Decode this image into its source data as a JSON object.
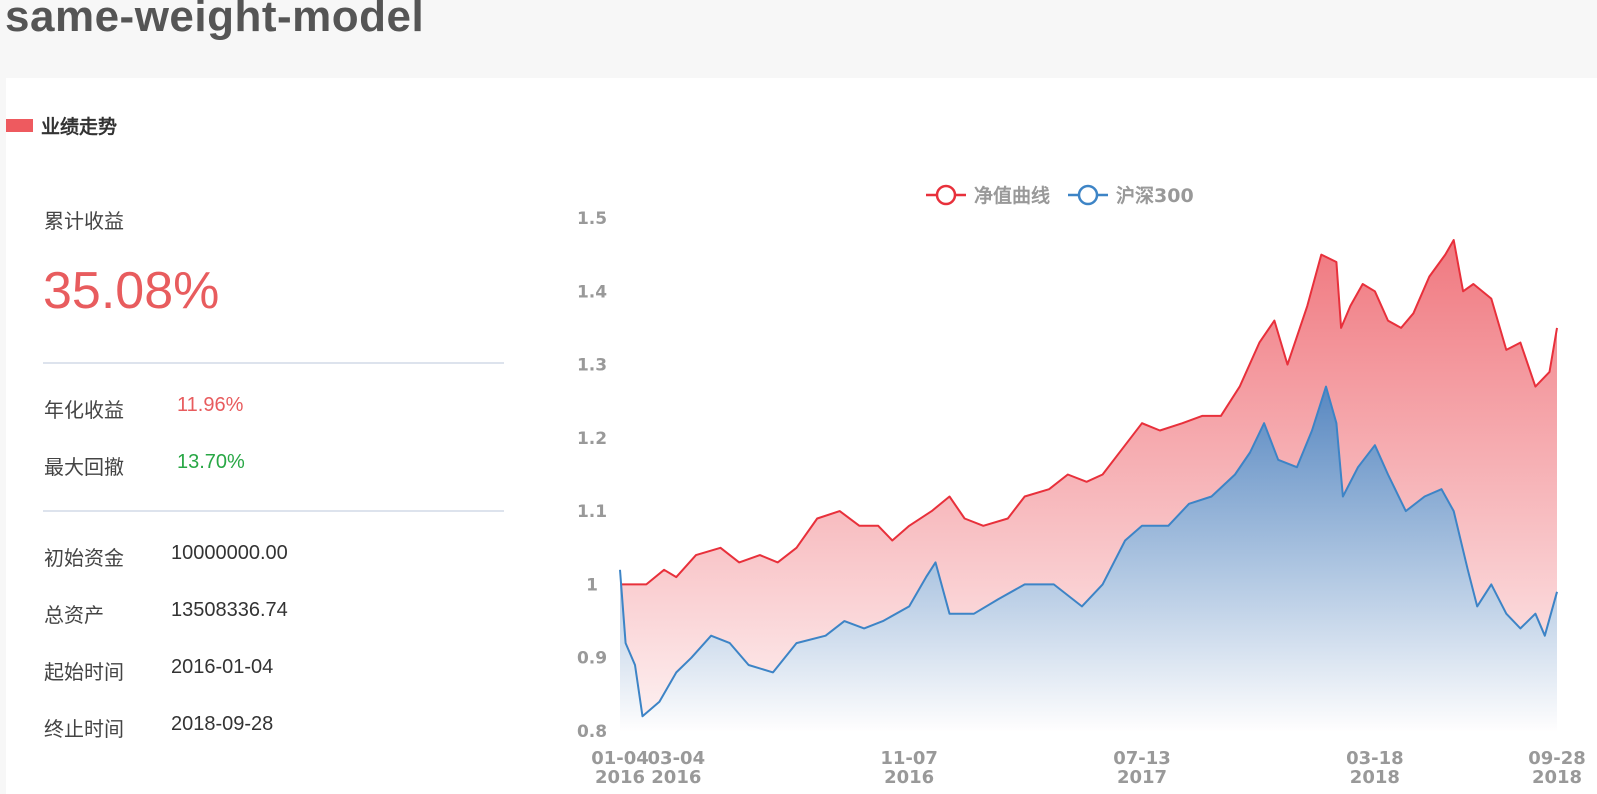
{
  "page_title": "same-weight-model",
  "section_title": "业绩走势",
  "summary": {
    "cumulative_label": "累计收益",
    "cumulative_value": "35.08%",
    "annual_label": "年化收益",
    "annual_value": "11.96%",
    "drawdown_label": "最大回撤",
    "drawdown_value": "13.70%",
    "initial_label": "初始资金",
    "initial_value": "10000000.00",
    "total_label": "总资产",
    "total_value": "13508336.74",
    "start_label": "起始时间",
    "start_value": "2016-01-04",
    "end_label": "终止时间",
    "end_value": "2018-09-28"
  },
  "colors": {
    "accent": "#ee5a5f",
    "positive": "#e85c5e",
    "negative": "#28a745",
    "net_value_line": "#e8303b",
    "benchmark_line": "#3d84c6"
  },
  "chart_data": {
    "type": "area",
    "title": "",
    "xlabel": "",
    "ylabel": "",
    "ylim": [
      0.8,
      1.5
    ],
    "yticks": [
      1.5,
      1.4,
      1.3,
      1.2,
      1.1,
      1,
      0.9,
      0.8
    ],
    "ytick_labels": [
      "1.5",
      "1.4",
      "1.3",
      "1.2",
      "1.1",
      "1",
      "0.9",
      "0.8"
    ],
    "x_ticks": [
      {
        "date": "2016-01-04",
        "line1": "01-04",
        "line2": "2016"
      },
      {
        "date": "2016-03-04",
        "line1": "03-04",
        "line2": "2016"
      },
      {
        "date": "2016-11-07",
        "line1": "11-07",
        "line2": "2016"
      },
      {
        "date": "2017-07-13",
        "line1": "07-13",
        "line2": "2017"
      },
      {
        "date": "2018-03-18",
        "line1": "03-18",
        "line2": "2018"
      },
      {
        "date": "2018-09-28",
        "line1": "09-28",
        "line2": "2018"
      }
    ],
    "x_range": [
      "2016-01-04",
      "2018-09-28"
    ],
    "legend_position": "top-center",
    "grid": false,
    "series": [
      {
        "name": "净值曲线",
        "color": "#e8303b",
        "points": [
          [
            "2016-01-04",
            1.0
          ],
          [
            "2016-02-01",
            1.0
          ],
          [
            "2016-02-20",
            1.02
          ],
          [
            "2016-03-04",
            1.01
          ],
          [
            "2016-03-25",
            1.04
          ],
          [
            "2016-04-20",
            1.05
          ],
          [
            "2016-05-10",
            1.03
          ],
          [
            "2016-06-01",
            1.04
          ],
          [
            "2016-06-20",
            1.03
          ],
          [
            "2016-07-10",
            1.05
          ],
          [
            "2016-08-01",
            1.09
          ],
          [
            "2016-08-25",
            1.1
          ],
          [
            "2016-09-15",
            1.08
          ],
          [
            "2016-10-05",
            1.08
          ],
          [
            "2016-10-20",
            1.06
          ],
          [
            "2016-11-07",
            1.08
          ],
          [
            "2016-12-01",
            1.1
          ],
          [
            "2016-12-20",
            1.12
          ],
          [
            "2017-01-05",
            1.09
          ],
          [
            "2017-01-25",
            1.08
          ],
          [
            "2017-02-20",
            1.09
          ],
          [
            "2017-03-10",
            1.12
          ],
          [
            "2017-04-05",
            1.13
          ],
          [
            "2017-04-25",
            1.15
          ],
          [
            "2017-05-15",
            1.14
          ],
          [
            "2017-06-01",
            1.15
          ],
          [
            "2017-06-25",
            1.19
          ],
          [
            "2017-07-13",
            1.22
          ],
          [
            "2017-08-01",
            1.21
          ],
          [
            "2017-08-25",
            1.22
          ],
          [
            "2017-09-15",
            1.23
          ],
          [
            "2017-10-05",
            1.23
          ],
          [
            "2017-10-25",
            1.27
          ],
          [
            "2017-11-15",
            1.33
          ],
          [
            "2017-12-01",
            1.36
          ],
          [
            "2017-12-15",
            1.3
          ],
          [
            "2018-01-05",
            1.38
          ],
          [
            "2018-01-20",
            1.45
          ],
          [
            "2018-02-05",
            1.44
          ],
          [
            "2018-02-10",
            1.35
          ],
          [
            "2018-02-20",
            1.38
          ],
          [
            "2018-03-05",
            1.41
          ],
          [
            "2018-03-18",
            1.4
          ],
          [
            "2018-04-01",
            1.36
          ],
          [
            "2018-04-15",
            1.35
          ],
          [
            "2018-04-28",
            1.37
          ],
          [
            "2018-05-15",
            1.42
          ],
          [
            "2018-06-01",
            1.45
          ],
          [
            "2018-06-10",
            1.47
          ],
          [
            "2018-06-20",
            1.4
          ],
          [
            "2018-07-01",
            1.41
          ],
          [
            "2018-07-20",
            1.39
          ],
          [
            "2018-08-05",
            1.32
          ],
          [
            "2018-08-20",
            1.33
          ],
          [
            "2018-09-05",
            1.27
          ],
          [
            "2018-09-20",
            1.29
          ],
          [
            "2018-09-28",
            1.35
          ]
        ]
      },
      {
        "name": "沪深300",
        "color": "#3d84c6",
        "points": [
          [
            "2016-01-04",
            1.02
          ],
          [
            "2016-01-10",
            0.92
          ],
          [
            "2016-01-20",
            0.89
          ],
          [
            "2016-01-28",
            0.82
          ],
          [
            "2016-02-15",
            0.84
          ],
          [
            "2016-03-04",
            0.88
          ],
          [
            "2016-03-20",
            0.9
          ],
          [
            "2016-04-10",
            0.93
          ],
          [
            "2016-04-30",
            0.92
          ],
          [
            "2016-05-20",
            0.89
          ],
          [
            "2016-06-15",
            0.88
          ],
          [
            "2016-07-10",
            0.92
          ],
          [
            "2016-08-10",
            0.93
          ],
          [
            "2016-08-30",
            0.95
          ],
          [
            "2016-09-20",
            0.94
          ],
          [
            "2016-10-10",
            0.95
          ],
          [
            "2016-11-07",
            0.97
          ],
          [
            "2016-11-25",
            1.01
          ],
          [
            "2016-12-05",
            1.03
          ],
          [
            "2016-12-20",
            0.96
          ],
          [
            "2017-01-15",
            0.96
          ],
          [
            "2017-02-10",
            0.98
          ],
          [
            "2017-03-10",
            1.0
          ],
          [
            "2017-04-10",
            1.0
          ],
          [
            "2017-05-10",
            0.97
          ],
          [
            "2017-06-01",
            1.0
          ],
          [
            "2017-06-25",
            1.06
          ],
          [
            "2017-07-13",
            1.08
          ],
          [
            "2017-08-10",
            1.08
          ],
          [
            "2017-09-01",
            1.11
          ],
          [
            "2017-09-25",
            1.12
          ],
          [
            "2017-10-20",
            1.15
          ],
          [
            "2017-11-05",
            1.18
          ],
          [
            "2017-11-20",
            1.22
          ],
          [
            "2017-12-05",
            1.17
          ],
          [
            "2017-12-25",
            1.16
          ],
          [
            "2018-01-10",
            1.21
          ],
          [
            "2018-01-25",
            1.27
          ],
          [
            "2018-02-05",
            1.22
          ],
          [
            "2018-02-12",
            1.12
          ],
          [
            "2018-02-28",
            1.16
          ],
          [
            "2018-03-18",
            1.19
          ],
          [
            "2018-04-01",
            1.15
          ],
          [
            "2018-04-20",
            1.1
          ],
          [
            "2018-05-10",
            1.12
          ],
          [
            "2018-05-28",
            1.13
          ],
          [
            "2018-06-10",
            1.1
          ],
          [
            "2018-06-25",
            1.02
          ],
          [
            "2018-07-05",
            0.97
          ],
          [
            "2018-07-20",
            1.0
          ],
          [
            "2018-08-05",
            0.96
          ],
          [
            "2018-08-20",
            0.94
          ],
          [
            "2018-09-05",
            0.96
          ],
          [
            "2018-09-15",
            0.93
          ],
          [
            "2018-09-28",
            0.99
          ]
        ]
      }
    ]
  }
}
